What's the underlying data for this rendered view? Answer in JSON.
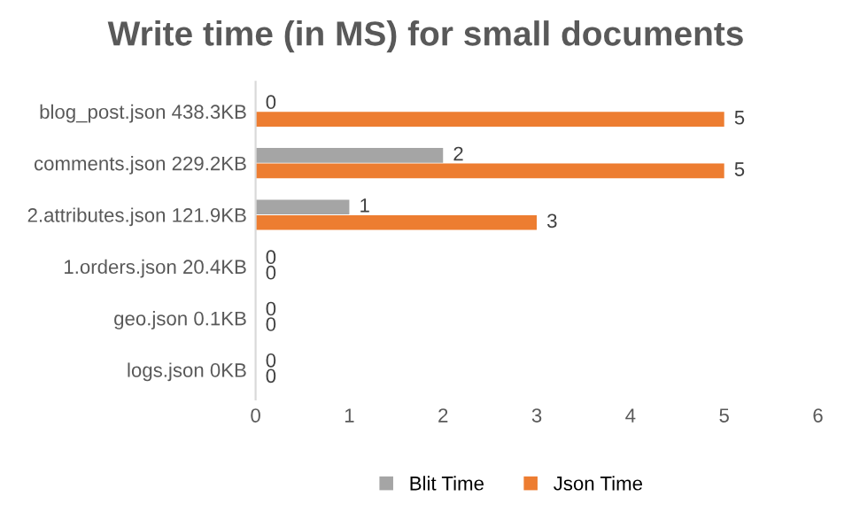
{
  "chart_data": {
    "type": "bar",
    "orientation": "horizontal",
    "title": "Write time (in MS) for small documents",
    "categories": [
      "blog_post.json 438.3KB",
      "comments.json 229.2KB",
      "2.attributes.json 121.9KB",
      "1.orders.json 20.4KB",
      "geo.json 0.1KB",
      "logs.json 0KB"
    ],
    "series": [
      {
        "name": "Blit Time",
        "color": "#a5a5a5",
        "values": [
          0,
          2,
          1,
          0,
          0,
          0
        ]
      },
      {
        "name": "Json Time",
        "color": "#ed7d31",
        "values": [
          5,
          5,
          3,
          0,
          0,
          0
        ]
      }
    ],
    "xlim": [
      0,
      6
    ],
    "xticks": [
      0,
      1,
      2,
      3,
      4,
      5,
      6
    ],
    "data_labels": true,
    "legend": "bottom",
    "grid": false
  }
}
